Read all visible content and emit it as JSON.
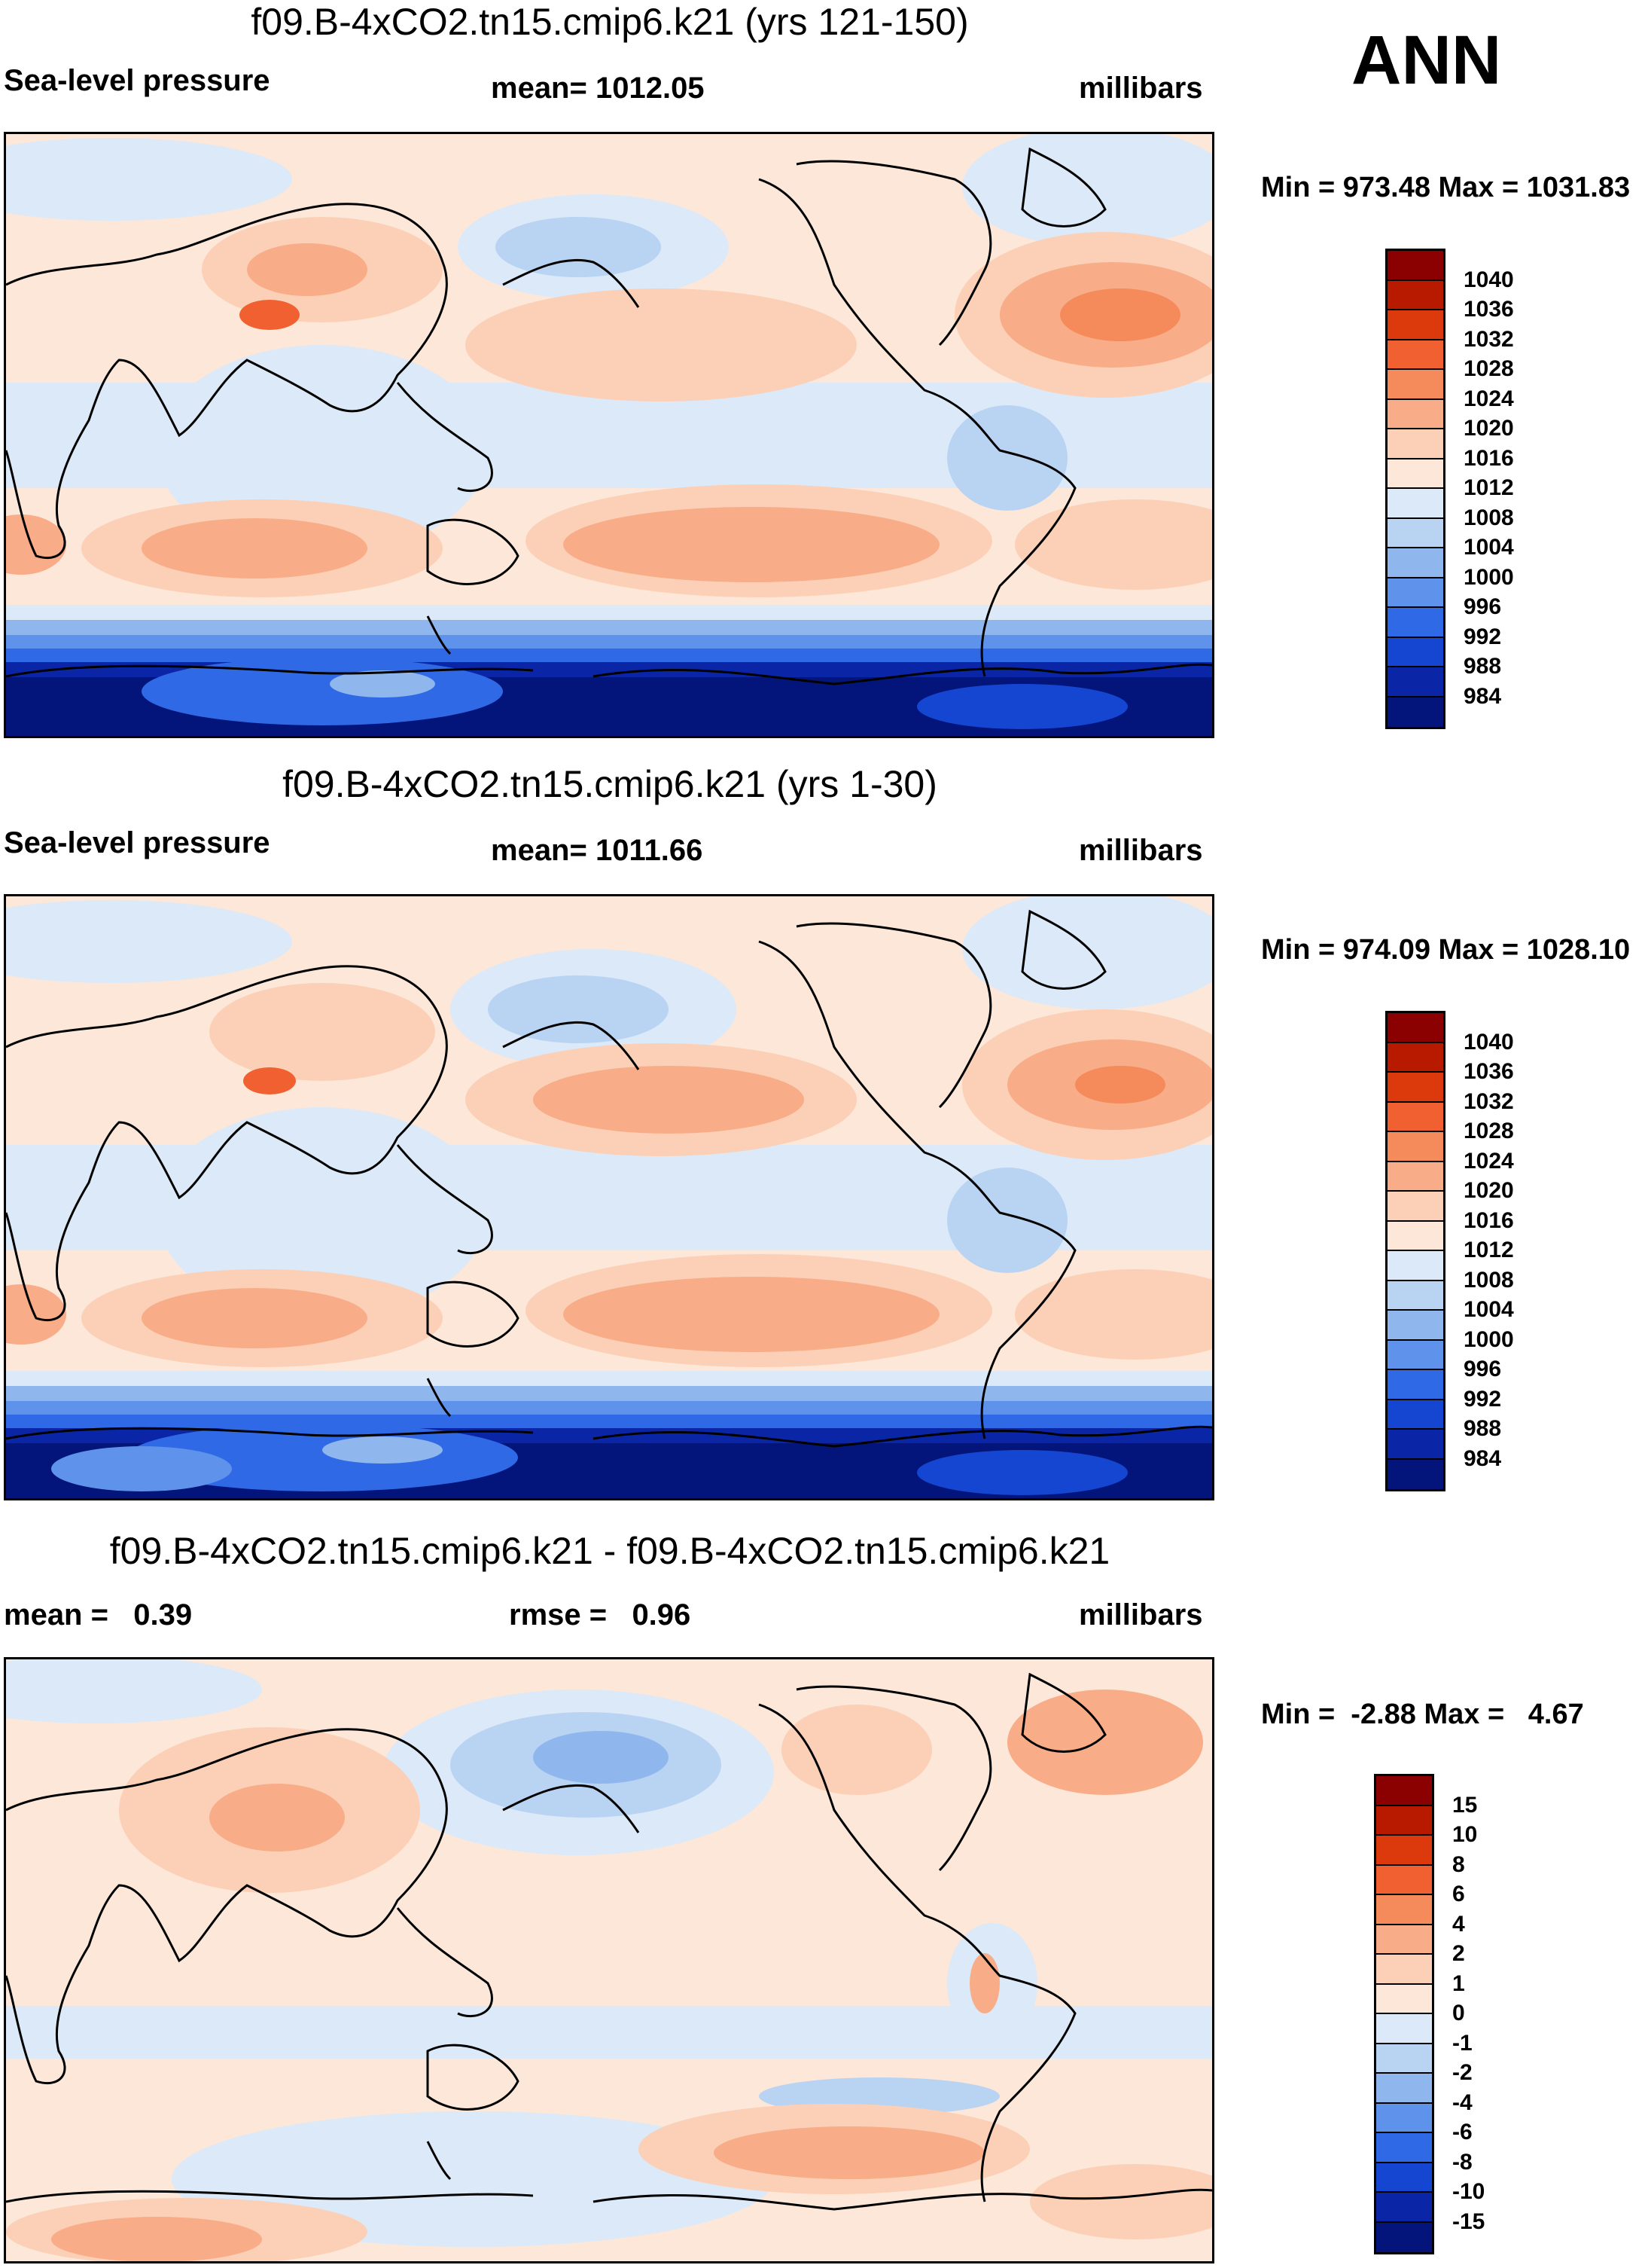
{
  "season": "ANN",
  "panels": [
    {
      "title": "f09.B-4xCO2.tn15.cmip6.k21 (yrs 121-150)",
      "left_label": "Sea-level pressure",
      "center_label": "mean= 1012.05",
      "right_label": "millibars",
      "minmax": "Min = 973.48 Max = 1031.83",
      "colorbar": {
        "colors": [
          "#8b0000",
          "#b81a00",
          "#dc3a0c",
          "#f06030",
          "#f58a5a",
          "#f8ac88",
          "#fbd0b6",
          "#fde7d8",
          "#dbe9f8",
          "#b9d3f3",
          "#8fb7ee",
          "#5f92ea",
          "#2f69e6",
          "#1446d2",
          "#0a26a6",
          "#03157a"
        ],
        "labels": [
          "1040",
          "1036",
          "1032",
          "1028",
          "1024",
          "1020",
          "1016",
          "1012",
          "1008",
          "1004",
          "1000",
          "996",
          "992",
          "988",
          "984"
        ]
      }
    },
    {
      "title": "f09.B-4xCO2.tn15.cmip6.k21 (yrs 1-30)",
      "left_label": "Sea-level pressure",
      "center_label": "mean= 1011.66",
      "right_label": "millibars",
      "minmax": "Min = 974.09 Max = 1028.10",
      "colorbar": {
        "colors": [
          "#8b0000",
          "#b81a00",
          "#dc3a0c",
          "#f06030",
          "#f58a5a",
          "#f8ac88",
          "#fbd0b6",
          "#fde7d8",
          "#dbe9f8",
          "#b9d3f3",
          "#8fb7ee",
          "#5f92ea",
          "#2f69e6",
          "#1446d2",
          "#0a26a6",
          "#03157a"
        ],
        "labels": [
          "1040",
          "1036",
          "1032",
          "1028",
          "1024",
          "1020",
          "1016",
          "1012",
          "1008",
          "1004",
          "1000",
          "996",
          "992",
          "988",
          "984"
        ]
      }
    },
    {
      "title": "f09.B-4xCO2.tn15.cmip6.k21 - f09.B-4xCO2.tn15.cmip6.k21",
      "left_label": "mean =   0.39",
      "center_label": "rmse =   0.96",
      "right_label": "millibars",
      "minmax": "Min =  -2.88 Max =   4.67",
      "colorbar": {
        "colors": [
          "#8b0000",
          "#b81a00",
          "#dc3a0c",
          "#f06030",
          "#f58a5a",
          "#f8ac88",
          "#fbd0b6",
          "#fde7d8",
          "#dbe9f8",
          "#b9d3f3",
          "#8fb7ee",
          "#5f92ea",
          "#2f69e6",
          "#1446d2",
          "#0a26a6",
          "#03157a"
        ],
        "labels": [
          "15",
          "10",
          "8",
          "6",
          "4",
          "2",
          "1",
          "0",
          "-1",
          "-2",
          "-4",
          "-6",
          "-8",
          "-10",
          "-15"
        ]
      }
    }
  ]
}
